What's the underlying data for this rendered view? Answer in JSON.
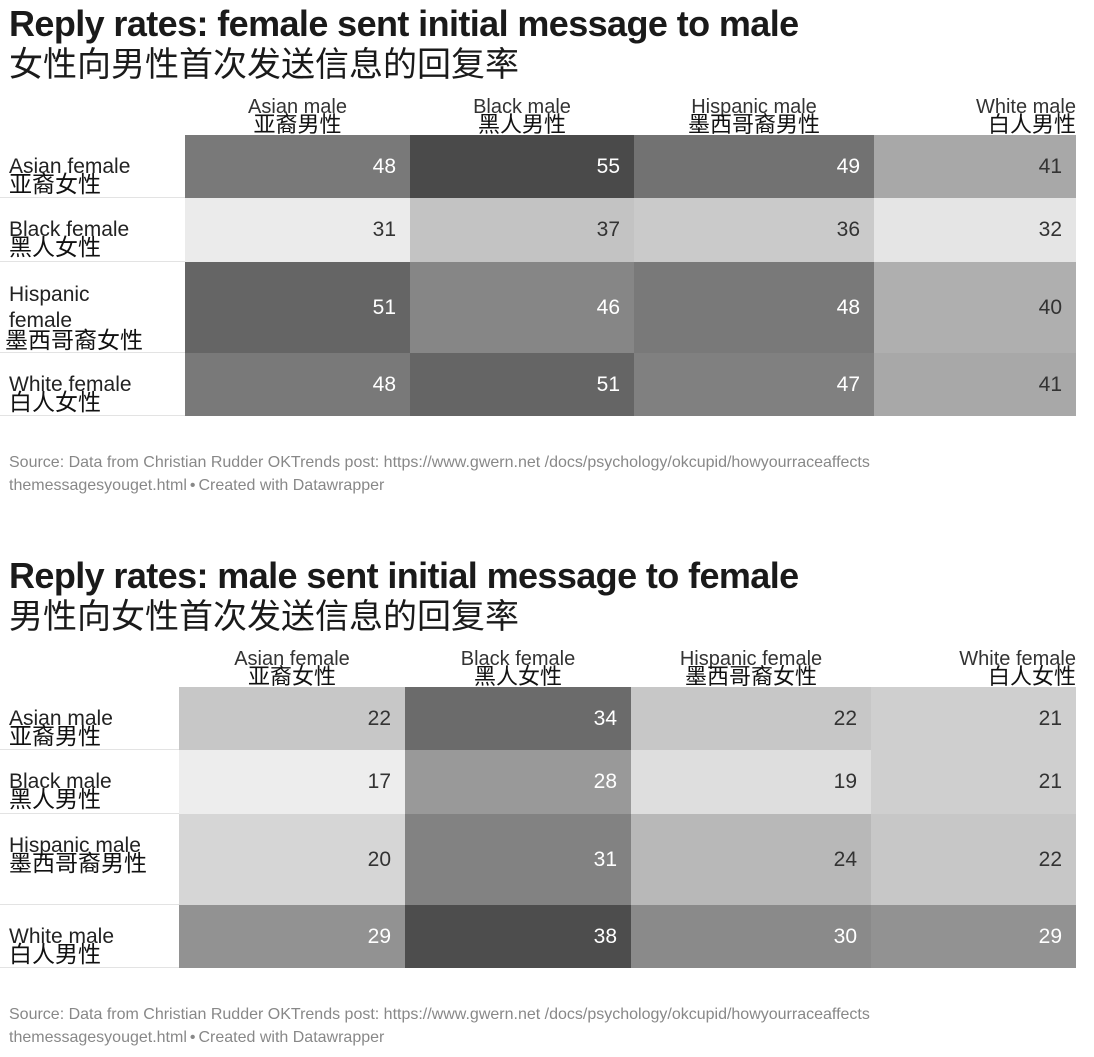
{
  "chart_data": [
    {
      "type": "heatmap",
      "title": "Reply rates: female sent initial message to male",
      "subtitle": "女性向男性首次发送信息的回复率",
      "columns": [
        {
          "en": "Asian male",
          "zh": "亚裔男性"
        },
        {
          "en": "Black male",
          "zh": "黑人男性"
        },
        {
          "en": "Hispanic male",
          "zh": "墨西哥裔男性"
        },
        {
          "en": "White male",
          "zh": "白人男性"
        }
      ],
      "rows": [
        {
          "en": "Asian female",
          "zh": "亚裔女性",
          "values": [
            48,
            55,
            49,
            41
          ]
        },
        {
          "en": "Black female",
          "zh": "黑人女性",
          "values": [
            31,
            37,
            36,
            32
          ]
        },
        {
          "en": "Hispanic female",
          "zh": "墨西哥裔女性",
          "values": [
            51,
            46,
            48,
            40
          ]
        },
        {
          "en": "White female",
          "zh": "白人女性",
          "values": [
            48,
            51,
            47,
            41
          ]
        }
      ],
      "color_range": [
        30,
        56
      ],
      "colors": {
        "low": "#f2f2f2",
        "high": "#434343"
      },
      "source": "Source: Data from Christian Rudder OKTrends post: https://www.gwern.net /docs/psychology/okcupid/howyourraceaffects themessagesyouget.html",
      "credit": "Created with Datawrapper"
    },
    {
      "type": "heatmap",
      "title": "Reply rates: male sent initial message to female",
      "subtitle": "男性向女性首次发送信息的回复率",
      "columns": [
        {
          "en": "Asian female",
          "zh": "亚裔女性"
        },
        {
          "en": "Black female",
          "zh": "黑人女性"
        },
        {
          "en": "Hispanic female",
          "zh": "墨西哥裔女性"
        },
        {
          "en": "White female",
          "zh": "白人女性"
        }
      ],
      "rows": [
        {
          "en": "Asian male",
          "zh": "亚裔男性",
          "values": [
            22,
            34,
            22,
            21
          ]
        },
        {
          "en": "Black male",
          "zh": "黑人男性",
          "values": [
            17,
            28,
            19,
            21
          ]
        },
        {
          "en": "Hispanic male",
          "zh": "墨西哥裔男性",
          "values": [
            20,
            31,
            24,
            22
          ]
        },
        {
          "en": "White male",
          "zh": "白人男性",
          "values": [
            29,
            38,
            30,
            29
          ]
        }
      ],
      "color_range": [
        16,
        39
      ],
      "colors": {
        "low": "#f5f5f5",
        "high": "#454545"
      },
      "source": "Source: Data from Christian Rudder OKTrends post: https://www.gwern.net /docs/psychology/okcupid/howyourraceaffects themessagesyouget.html",
      "credit": "Created with Datawrapper"
    }
  ]
}
